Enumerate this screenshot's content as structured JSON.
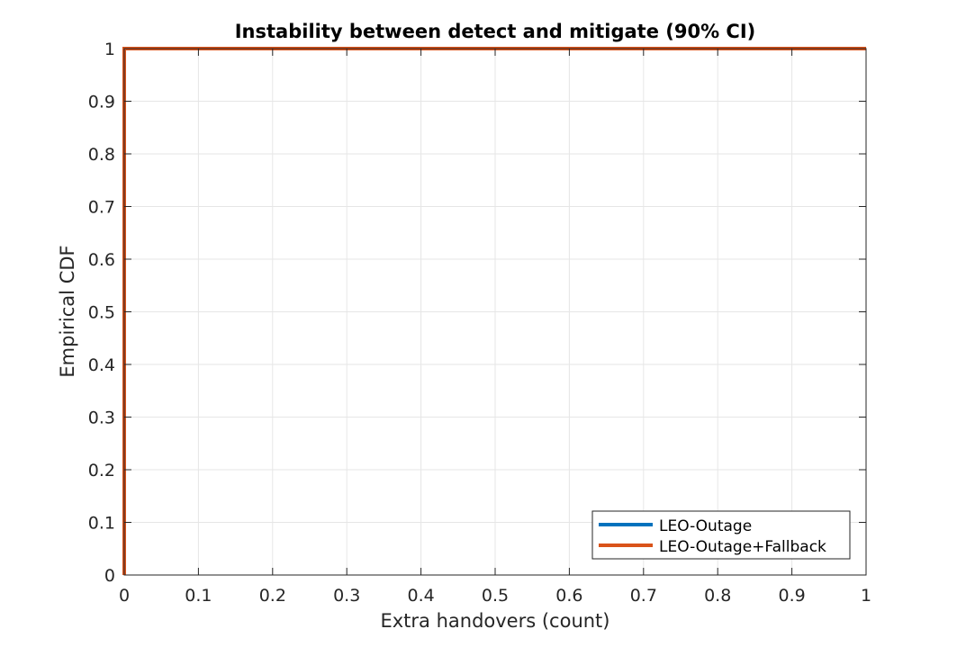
{
  "chart_data": {
    "type": "line",
    "title": "Instability between detect and mitigate (90% CI)",
    "xlabel": "Extra handovers (count)",
    "ylabel": "Empirical CDF",
    "xlim": [
      0,
      1
    ],
    "ylim": [
      0,
      1
    ],
    "xticks": [
      "0",
      "0.1",
      "0.2",
      "0.3",
      "0.4",
      "0.5",
      "0.6",
      "0.7",
      "0.8",
      "0.9",
      "1"
    ],
    "yticks": [
      "0",
      "0.1",
      "0.2",
      "0.3",
      "0.4",
      "0.5",
      "0.6",
      "0.7",
      "0.8",
      "0.9",
      "1"
    ],
    "grid": true,
    "legend_position": "bottom-right",
    "series": [
      {
        "name": "LEO-Outage",
        "color": "#0072BD",
        "x": [
          0,
          0,
          1
        ],
        "y": [
          0,
          1,
          1
        ]
      },
      {
        "name": "LEO-Outage+Fallback",
        "color": "#D95319",
        "x": [
          0,
          0,
          1
        ],
        "y": [
          0,
          1,
          1
        ]
      }
    ]
  }
}
